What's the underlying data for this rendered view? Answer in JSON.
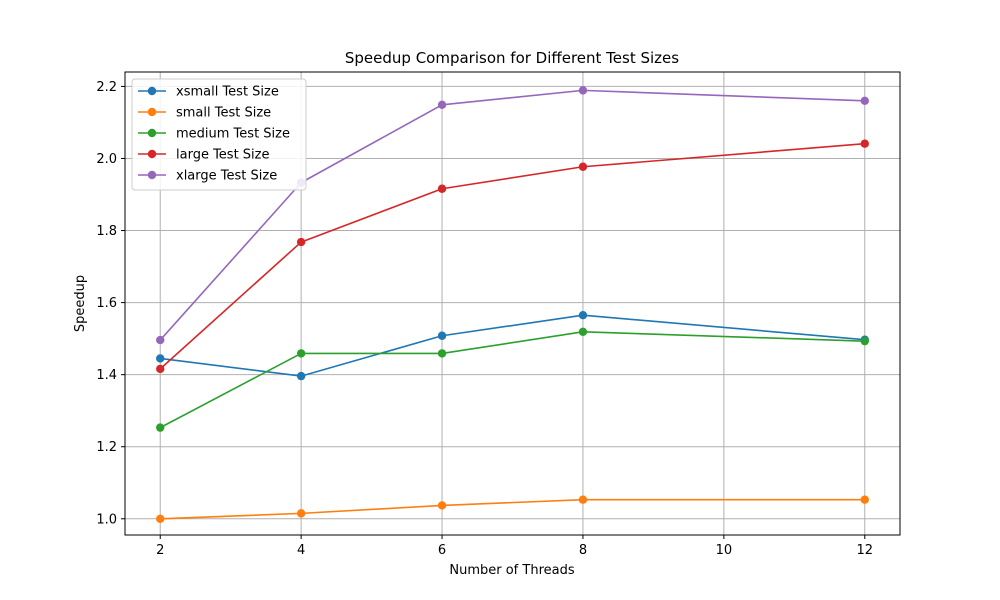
{
  "chart_data": {
    "type": "line",
    "title": "Speedup Comparison for Different Test Sizes",
    "xlabel": "Number of Threads",
    "ylabel": "Speedup",
    "x": [
      2,
      4,
      6,
      8,
      12
    ],
    "xticks": [
      2,
      4,
      6,
      8,
      10,
      12
    ],
    "yticks": [
      1.0,
      1.2,
      1.4,
      1.6,
      1.8,
      2.0,
      2.2
    ],
    "xlim": [
      1.5,
      12.5
    ],
    "ylim": [
      0.955,
      2.24
    ],
    "grid": true,
    "legend_position": "top-left",
    "series": [
      {
        "name": "xsmall Test Size",
        "color": "#1f77b4",
        "values": [
          1.445,
          1.396,
          1.508,
          1.565,
          1.497
        ]
      },
      {
        "name": "small Test Size",
        "color": "#ff7f0e",
        "values": [
          1.0,
          1.015,
          1.037,
          1.053,
          1.053
        ]
      },
      {
        "name": "medium Test Size",
        "color": "#2ca02c",
        "values": [
          1.253,
          1.459,
          1.459,
          1.519,
          1.493
        ]
      },
      {
        "name": "large Test Size",
        "color": "#d62728",
        "values": [
          1.416,
          1.768,
          1.916,
          1.977,
          2.041
        ]
      },
      {
        "name": "xlarge Test Size",
        "color": "#9467bd",
        "values": [
          1.496,
          1.933,
          2.149,
          2.189,
          2.16
        ]
      }
    ]
  }
}
